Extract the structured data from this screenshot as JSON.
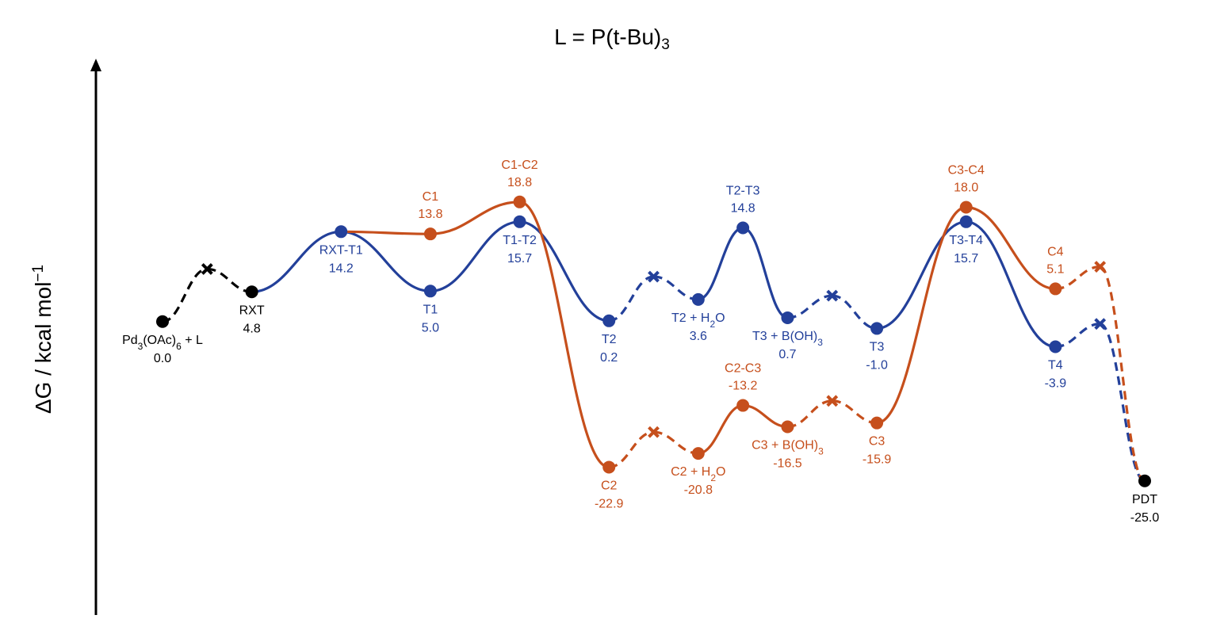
{
  "chart_data": {
    "type": "line",
    "title": "L = P(t-Bu)",
    "title_sub": "3",
    "ylabel": "ΔG / kcal mol",
    "ylabel_sup": "−1",
    "grid": false,
    "ylim": [
      -38.5,
      34.5
    ],
    "colors": {
      "blue": "#23409a",
      "orange": "#c64f1c",
      "black": "#000000"
    },
    "points": [
      {
        "id": "start",
        "color": "black",
        "marker": "circle",
        "x": 1,
        "y": 0.0,
        "name": [
          [
            "Pd",
            ""
          ],
          [
            "3",
            "sub"
          ],
          [
            "(OAc)",
            ""
          ],
          [
            "6",
            "sub"
          ],
          [
            " + L",
            ""
          ]
        ],
        "value": "0.0",
        "pos": "below"
      },
      {
        "id": "start_x",
        "color": "black",
        "marker": "cross",
        "x": 2,
        "y": 6.9
      },
      {
        "id": "rxt",
        "color": "black",
        "marker": "circle",
        "x": 3,
        "y": 3.9,
        "name": [
          [
            "RXT",
            ""
          ]
        ],
        "value": "4.8",
        "pos": "below"
      },
      {
        "id": "rxt_t1",
        "color": "blue",
        "marker": "circle",
        "x": 5,
        "y": 11.8,
        "name": [
          [
            "RXT-T1",
            ""
          ]
        ],
        "value": "14.2",
        "pos": "below"
      },
      {
        "id": "t1",
        "color": "blue",
        "marker": "circle",
        "x": 7,
        "y": 4.0,
        "name": [
          [
            "T1",
            ""
          ]
        ],
        "value": "5.0",
        "pos": "below"
      },
      {
        "id": "t1_t2",
        "color": "blue",
        "marker": "circle",
        "x": 9,
        "y": 13.1,
        "name": [
          [
            "T1-T2",
            ""
          ]
        ],
        "value": "15.7",
        "pos": "below"
      },
      {
        "id": "t2",
        "color": "blue",
        "marker": "circle",
        "x": 11,
        "y": 0.1,
        "name": [
          [
            "T2",
            ""
          ]
        ],
        "value": "0.2",
        "pos": "below"
      },
      {
        "id": "t2_x",
        "color": "blue",
        "marker": "cross",
        "x": 12,
        "y": 5.9
      },
      {
        "id": "t2_h2o",
        "color": "blue",
        "marker": "circle",
        "x": 13,
        "y": 2.9,
        "name": [
          [
            "T2 + H",
            ""
          ],
          [
            "2",
            "sub"
          ],
          [
            "O",
            ""
          ]
        ],
        "value": "3.6",
        "pos": "below"
      },
      {
        "id": "t2_t3",
        "color": "blue",
        "marker": "circle",
        "x": 14,
        "y": 12.3,
        "name": [
          [
            "T2-T3",
            ""
          ]
        ],
        "value": "14.8",
        "pos": "above"
      },
      {
        "id": "t3_boh",
        "color": "blue",
        "marker": "circle",
        "x": 15,
        "y": 0.5,
        "name": [
          [
            "T3 + B(OH)",
            ""
          ],
          [
            "3",
            "sub"
          ]
        ],
        "value": "0.7",
        "pos": "below"
      },
      {
        "id": "t3_x",
        "color": "blue",
        "marker": "cross",
        "x": 16,
        "y": 3.4
      },
      {
        "id": "t3",
        "color": "blue",
        "marker": "circle",
        "x": 17,
        "y": -0.9,
        "name": [
          [
            "T3",
            ""
          ]
        ],
        "value": "-1.0",
        "pos": "below"
      },
      {
        "id": "t3_t4",
        "color": "blue",
        "marker": "circle",
        "x": 19,
        "y": 13.1,
        "name": [
          [
            "T3-T4",
            ""
          ]
        ],
        "value": "15.7",
        "pos": "below"
      },
      {
        "id": "t4",
        "color": "blue",
        "marker": "circle",
        "x": 21,
        "y": -3.3,
        "name": [
          [
            "T4",
            ""
          ]
        ],
        "value": "-3.9",
        "pos": "below"
      },
      {
        "id": "t4_x",
        "color": "blue",
        "marker": "cross",
        "x": 22,
        "y": -0.3
      },
      {
        "id": "c1",
        "color": "orange",
        "marker": "circle",
        "x": 7,
        "y": 11.5,
        "name": [
          [
            "C1",
            ""
          ]
        ],
        "value": "13.8",
        "pos": "above"
      },
      {
        "id": "c1_c2",
        "color": "orange",
        "marker": "circle",
        "x": 9,
        "y": 15.7,
        "name": [
          [
            "C1-C2",
            ""
          ]
        ],
        "value": "18.8",
        "pos": "above"
      },
      {
        "id": "c2",
        "color": "orange",
        "marker": "circle",
        "x": 11,
        "y": -19.1,
        "name": [
          [
            "C2",
            ""
          ]
        ],
        "value": "-22.9",
        "pos": "below"
      },
      {
        "id": "c2_x",
        "color": "orange",
        "marker": "cross",
        "x": 12,
        "y": -14.5
      },
      {
        "id": "c2_h2o",
        "color": "orange",
        "marker": "circle",
        "x": 13,
        "y": -17.3,
        "name": [
          [
            "C2 + H",
            ""
          ],
          [
            "2",
            "sub"
          ],
          [
            "O",
            ""
          ]
        ],
        "value": "-20.8",
        "pos": "below"
      },
      {
        "id": "c2_c3",
        "color": "orange",
        "marker": "circle",
        "x": 14,
        "y": -11.0,
        "name": [
          [
            "C2-C3",
            ""
          ]
        ],
        "value": "-13.2",
        "pos": "above"
      },
      {
        "id": "c3_boh",
        "color": "orange",
        "marker": "circle",
        "x": 15,
        "y": -13.8,
        "name": [
          [
            "C3 + B(OH)",
            ""
          ],
          [
            "3",
            "sub"
          ]
        ],
        "value": "-16.5",
        "pos": "below"
      },
      {
        "id": "c3_x",
        "color": "orange",
        "marker": "cross",
        "x": 16,
        "y": -10.4
      },
      {
        "id": "c3",
        "color": "orange",
        "marker": "circle",
        "x": 17,
        "y": -13.3,
        "name": [
          [
            "C3",
            ""
          ]
        ],
        "value": "-15.9",
        "pos": "below"
      },
      {
        "id": "c3_c4",
        "color": "orange",
        "marker": "circle",
        "x": 19,
        "y": 15.0,
        "name": [
          [
            "C3-C4",
            ""
          ]
        ],
        "value": "18.0",
        "pos": "above"
      },
      {
        "id": "c4",
        "color": "orange",
        "marker": "circle",
        "x": 21,
        "y": 4.3,
        "name": [
          [
            "C4",
            ""
          ]
        ],
        "value": "5.1",
        "pos": "above"
      },
      {
        "id": "c4_x",
        "color": "orange",
        "marker": "cross",
        "x": 22,
        "y": 7.2
      },
      {
        "id": "pdt",
        "color": "black",
        "marker": "circle",
        "x": 23,
        "y": -20.9,
        "name": [
          [
            "PDT",
            ""
          ]
        ],
        "value": "-25.0",
        "pos": "below"
      }
    ],
    "segments": [
      {
        "from": "start",
        "to": "start_x",
        "color": "black",
        "dash": true
      },
      {
        "from": "start_x",
        "to": "rxt",
        "color": "black",
        "dash": true
      },
      {
        "from": "rxt",
        "to": "rxt_t1",
        "color": "blue",
        "dash": false
      },
      {
        "from": "rxt_t1",
        "to": "t1",
        "color": "blue",
        "dash": false
      },
      {
        "from": "t1",
        "to": "t1_t2",
        "color": "blue",
        "dash": false
      },
      {
        "from": "t1_t2",
        "to": "t2",
        "color": "blue",
        "dash": false
      },
      {
        "from": "t2",
        "to": "t2_x",
        "color": "blue",
        "dash": true
      },
      {
        "from": "t2_x",
        "to": "t2_h2o",
        "color": "blue",
        "dash": true
      },
      {
        "from": "t2_h2o",
        "to": "t2_t3",
        "color": "blue",
        "dash": false
      },
      {
        "from": "t2_t3",
        "to": "t3_boh",
        "color": "blue",
        "dash": false
      },
      {
        "from": "t3_boh",
        "to": "t3_x",
        "color": "blue",
        "dash": true
      },
      {
        "from": "t3_x",
        "to": "t3",
        "color": "blue",
        "dash": true
      },
      {
        "from": "t3",
        "to": "t3_t4",
        "color": "blue",
        "dash": false
      },
      {
        "from": "t3_t4",
        "to": "t4",
        "color": "blue",
        "dash": false
      },
      {
        "from": "t4",
        "to": "t4_x",
        "color": "blue",
        "dash": true
      },
      {
        "from": "t4_x",
        "to": "pdt",
        "color": "blue",
        "dash": true
      },
      {
        "from": "rxt_t1",
        "to": "c1",
        "color": "orange",
        "dash": false
      },
      {
        "from": "c1",
        "to": "c1_c2",
        "color": "orange",
        "dash": false
      },
      {
        "from": "c1_c2",
        "to": "c2",
        "color": "orange",
        "dash": false
      },
      {
        "from": "c2",
        "to": "c2_x",
        "color": "orange",
        "dash": true
      },
      {
        "from": "c2_x",
        "to": "c2_h2o",
        "color": "orange",
        "dash": true
      },
      {
        "from": "c2_h2o",
        "to": "c2_c3",
        "color": "orange",
        "dash": false
      },
      {
        "from": "c2_c3",
        "to": "c3_boh",
        "color": "orange",
        "dash": false
      },
      {
        "from": "c3_boh",
        "to": "c3_x",
        "color": "orange",
        "dash": true
      },
      {
        "from": "c3_x",
        "to": "c3",
        "color": "orange",
        "dash": true
      },
      {
        "from": "c3",
        "to": "c3_c4",
        "color": "orange",
        "dash": false
      },
      {
        "from": "c3_c4",
        "to": "c4",
        "color": "orange",
        "dash": false
      },
      {
        "from": "c4",
        "to": "c4_x",
        "color": "orange",
        "dash": true
      },
      {
        "from": "c4_x",
        "to": "pdt",
        "color": "orange",
        "dash": true
      }
    ]
  }
}
